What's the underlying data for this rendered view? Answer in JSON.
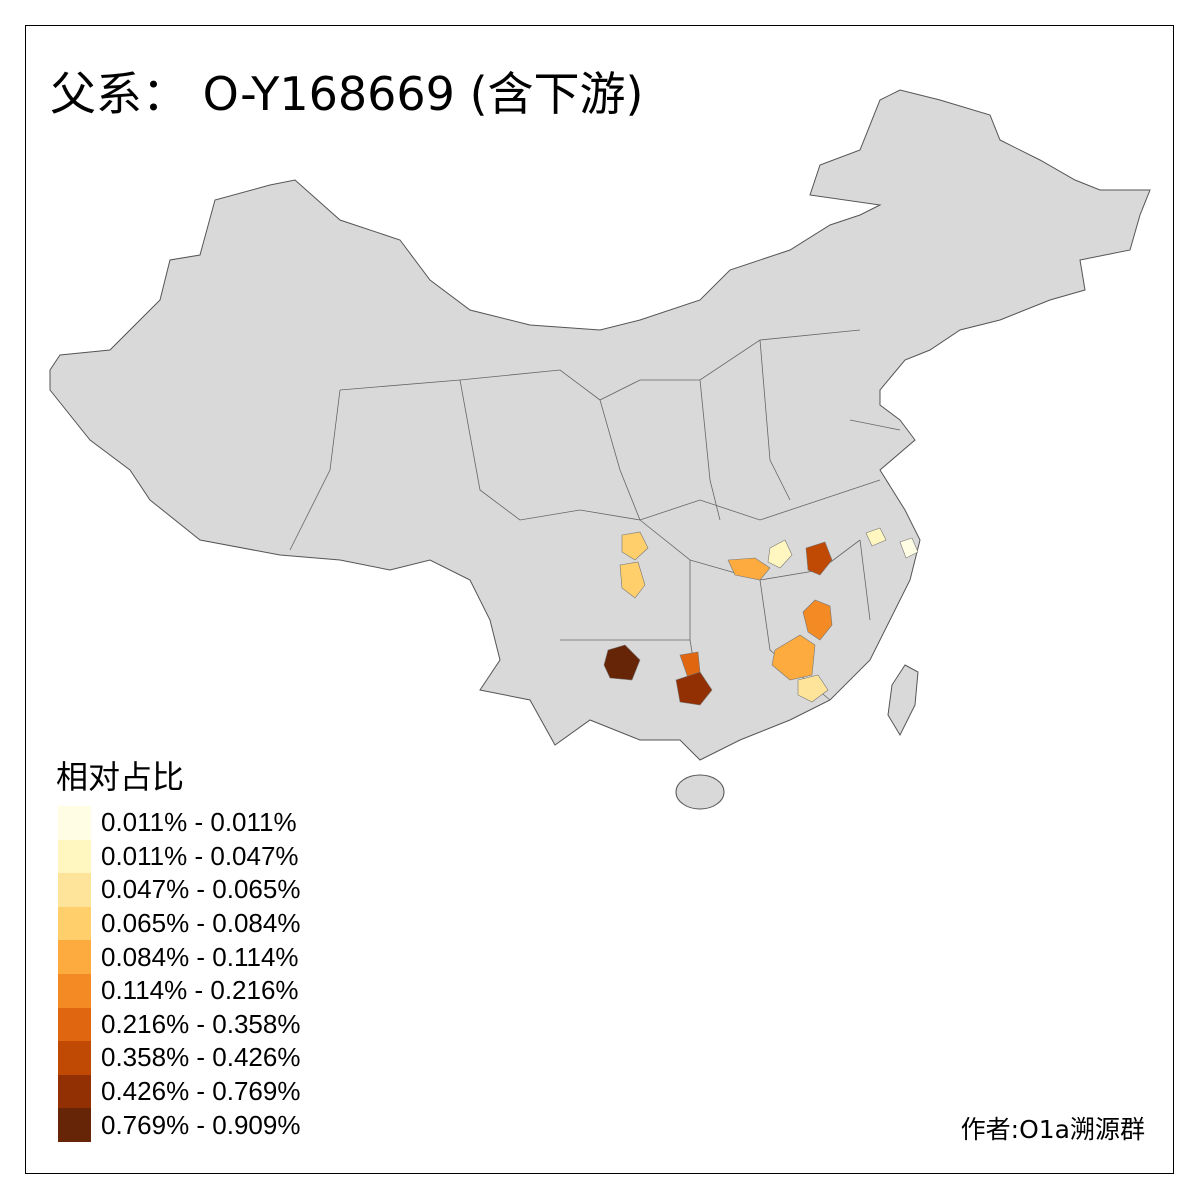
{
  "title": "父系： O-Y168669 (含下游)",
  "legend": {
    "title": "相对占比",
    "items": [
      {
        "label": "0.011% - 0.011%",
        "color": "#FFFDE4"
      },
      {
        "label": "0.011% - 0.047%",
        "color": "#FFF6C0"
      },
      {
        "label": "0.047% - 0.065%",
        "color": "#FEE49A"
      },
      {
        "label": "0.065% - 0.084%",
        "color": "#FECF6A"
      },
      {
        "label": "0.084% - 0.114%",
        "color": "#FDAB3E"
      },
      {
        "label": "0.114% - 0.216%",
        "color": "#F38A24"
      },
      {
        "label": "0.216% - 0.358%",
        "color": "#E0660F"
      },
      {
        "label": "0.358% - 0.426%",
        "color": "#C04A04"
      },
      {
        "label": "0.426% - 0.769%",
        "color": "#923004"
      },
      {
        "label": "0.769% - 0.909%",
        "color": "#662506"
      }
    ]
  },
  "map": {
    "base_color": "#D9D9D9",
    "border_color": "#555555"
  },
  "author": "作者:O1a溯源群"
}
